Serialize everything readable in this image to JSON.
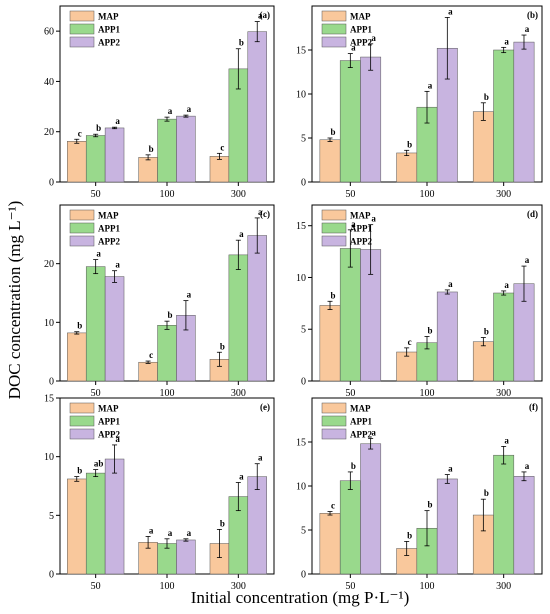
{
  "figure": {
    "ylabel": "DOC concentration (mg L⁻¹)",
    "xlabel": "Initial concentration (mg P·L⁻¹)",
    "colors": {
      "MAP": "#f9c89c",
      "APP1": "#99d98c",
      "APP2": "#c8b4e0"
    }
  },
  "chart_data": [
    {
      "type": "bar",
      "panel": "(a)",
      "categories": [
        "50",
        "100",
        "300"
      ],
      "ylim": [
        0,
        70
      ],
      "yticks": [
        0,
        20,
        40,
        60
      ],
      "series": [
        {
          "name": "MAP",
          "values": [
            16.2,
            9.8,
            10.2
          ],
          "errors": [
            0.8,
            1.0,
            1.2
          ],
          "letters": [
            "c",
            "b",
            "c"
          ]
        },
        {
          "name": "APP1",
          "values": [
            18.5,
            25.0,
            45.0
          ],
          "errors": [
            0.5,
            0.8,
            8.0
          ],
          "letters": [
            "b",
            "a",
            "b"
          ]
        },
        {
          "name": "APP2",
          "values": [
            21.5,
            26.2,
            59.8
          ],
          "errors": [
            0.3,
            0.4,
            4.0
          ],
          "letters": [
            "a",
            "a",
            "a"
          ]
        }
      ],
      "legend": "top-left"
    },
    {
      "type": "bar",
      "panel": "(b)",
      "categories": [
        "50",
        "100",
        "300"
      ],
      "ylim": [
        0,
        20
      ],
      "yticks": [
        0,
        5,
        10,
        15
      ],
      "series": [
        {
          "name": "MAP",
          "values": [
            4.8,
            3.3,
            8.0
          ],
          "errors": [
            0.2,
            0.3,
            1.0
          ],
          "letters": [
            "b",
            "b",
            "b"
          ]
        },
        {
          "name": "APP1",
          "values": [
            13.8,
            8.5,
            15.0
          ],
          "errors": [
            0.8,
            1.8,
            0.3
          ],
          "letters": [
            "a",
            "a",
            "a"
          ]
        },
        {
          "name": "APP2",
          "values": [
            14.2,
            15.2,
            15.9
          ],
          "errors": [
            1.5,
            3.5,
            0.8
          ],
          "letters": [
            "a",
            "a",
            "a"
          ]
        }
      ],
      "legend": "top-left"
    },
    {
      "type": "bar",
      "panel": "(c)",
      "categories": [
        "50",
        "100",
        "300"
      ],
      "ylim": [
        0,
        30
      ],
      "yticks": [
        0,
        10,
        20
      ],
      "series": [
        {
          "name": "MAP",
          "values": [
            8.2,
            3.2,
            3.7
          ],
          "errors": [
            0.2,
            0.2,
            1.2
          ],
          "letters": [
            "b",
            "c",
            "b"
          ]
        },
        {
          "name": "APP1",
          "values": [
            19.5,
            9.5,
            21.5
          ],
          "errors": [
            1.2,
            0.7,
            2.5
          ],
          "letters": [
            "a",
            "b",
            "a"
          ]
        },
        {
          "name": "APP2",
          "values": [
            17.8,
            11.2,
            24.8
          ],
          "errors": [
            1.0,
            2.5,
            3.0
          ],
          "letters": [
            "a",
            "a",
            "a"
          ]
        }
      ],
      "legend": "top-left"
    },
    {
      "type": "bar",
      "panel": "(d)",
      "categories": [
        "50",
        "100",
        "300"
      ],
      "ylim": [
        0,
        17
      ],
      "yticks": [
        0,
        5,
        10,
        15
      ],
      "series": [
        {
          "name": "MAP",
          "values": [
            7.3,
            2.8,
            3.8
          ],
          "errors": [
            0.4,
            0.4,
            0.4
          ],
          "letters": [
            "b",
            "c",
            "b"
          ]
        },
        {
          "name": "APP1",
          "values": [
            12.8,
            3.7,
            8.5
          ],
          "errors": [
            1.8,
            0.6,
            0.2
          ],
          "letters": [
            "a",
            "b",
            "a"
          ]
        },
        {
          "name": "APP2",
          "values": [
            12.7,
            8.6,
            9.4
          ],
          "errors": [
            2.4,
            0.2,
            1.7
          ],
          "letters": [
            "a",
            "a",
            "a"
          ]
        }
      ],
      "legend": "top-left"
    },
    {
      "type": "bar",
      "panel": "(e)",
      "categories": [
        "50",
        "100",
        "300"
      ],
      "ylim": [
        0,
        15
      ],
      "yticks": [
        0,
        5,
        10,
        15
      ],
      "series": [
        {
          "name": "MAP",
          "values": [
            8.1,
            2.7,
            2.6
          ],
          "errors": [
            0.2,
            0.5,
            1.2
          ],
          "letters": [
            "b",
            "a",
            "b"
          ]
        },
        {
          "name": "APP1",
          "values": [
            8.6,
            2.6,
            6.6
          ],
          "errors": [
            0.3,
            0.4,
            1.2
          ],
          "letters": [
            "ab",
            "a",
            "a"
          ]
        },
        {
          "name": "APP2",
          "values": [
            9.8,
            2.9,
            8.3
          ],
          "errors": [
            1.2,
            0.1,
            1.1
          ],
          "letters": [
            "a",
            "a",
            "a"
          ]
        }
      ],
      "legend": "top-left"
    },
    {
      "type": "bar",
      "panel": "(f)",
      "categories": [
        "50",
        "100",
        "300"
      ],
      "ylim": [
        0,
        20
      ],
      "yticks": [
        0,
        5,
        10,
        15
      ],
      "series": [
        {
          "name": "MAP",
          "values": [
            6.9,
            2.9,
            6.7
          ],
          "errors": [
            0.2,
            0.8,
            1.8
          ],
          "letters": [
            "c",
            "b",
            "b"
          ]
        },
        {
          "name": "APP1",
          "values": [
            10.6,
            5.2,
            13.5
          ],
          "errors": [
            1.0,
            2.0,
            1.0
          ],
          "letters": [
            "b",
            "b",
            "a"
          ]
        },
        {
          "name": "APP2",
          "values": [
            14.8,
            10.8,
            11.1
          ],
          "errors": [
            0.6,
            0.5,
            0.5
          ],
          "letters": [
            "a",
            "a",
            "a"
          ]
        }
      ],
      "legend": "top-left"
    }
  ]
}
